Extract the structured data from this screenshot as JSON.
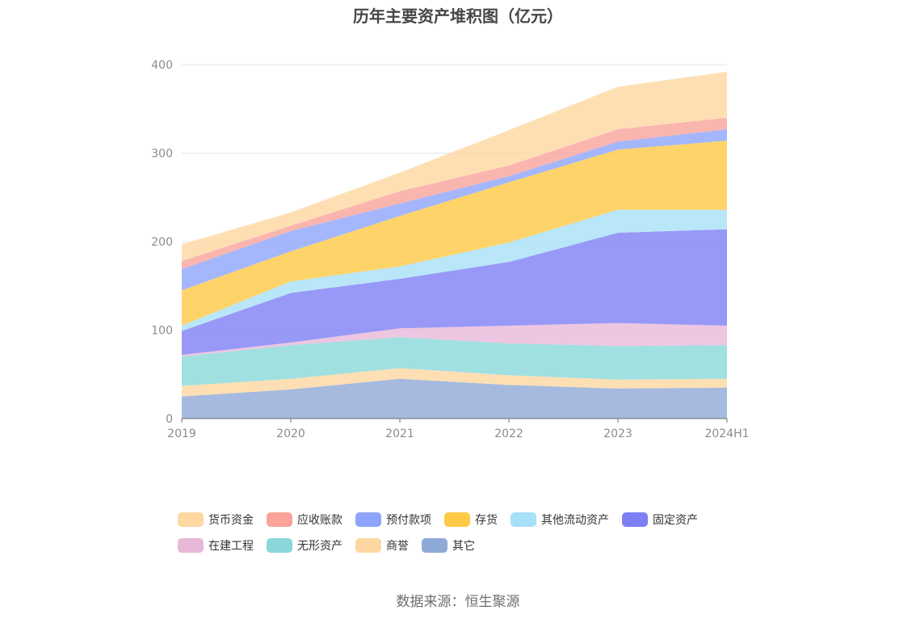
{
  "chart_data": {
    "type": "area",
    "title": "历年主要资产堆积图（亿元）",
    "categories": [
      "2019",
      "2020",
      "2021",
      "2022",
      "2023",
      "2024H1"
    ],
    "ylim": [
      0,
      400
    ],
    "yticks": [
      "0",
      "100",
      "200",
      "300",
      "400"
    ],
    "grid": true,
    "legend_position": "bottom",
    "series": [
      {
        "name": "其它",
        "color": "#8fa9d6",
        "values": [
          25,
          33,
          45,
          38,
          34,
          35
        ]
      },
      {
        "name": "商誉",
        "color": "#fed7a1",
        "values": [
          12,
          12,
          12,
          11,
          10,
          10
        ]
      },
      {
        "name": "无形资产",
        "color": "#8ad8da",
        "values": [
          33,
          38,
          35,
          36,
          38,
          38
        ]
      },
      {
        "name": "在建工程",
        "color": "#e8b8d9",
        "values": [
          2,
          3,
          10,
          20,
          26,
          22
        ]
      },
      {
        "name": "固定资产",
        "color": "#7e7ff5",
        "values": [
          27,
          56,
          56,
          72,
          102,
          109
        ]
      },
      {
        "name": "其他流动资产",
        "color": "#a8e0f8",
        "values": [
          6,
          13,
          14,
          22,
          26,
          22
        ]
      },
      {
        "name": "存货",
        "color": "#fec945",
        "values": [
          40,
          34,
          57,
          68,
          68,
          78
        ]
      },
      {
        "name": "预付款项",
        "color": "#8fa5fb",
        "values": [
          24,
          23,
          14,
          7,
          9,
          13
        ]
      },
      {
        "name": "应收账款",
        "color": "#f9a39b",
        "values": [
          9,
          6,
          14,
          12,
          14,
          13
        ]
      },
      {
        "name": "货币资金",
        "color": "#fed7a1",
        "values": [
          19,
          15,
          21,
          40,
          48,
          52
        ]
      }
    ]
  },
  "legend_rows": [
    [
      "货币资金",
      "应收账款",
      "预付款项",
      "存货",
      "其他流动资产",
      "固定资产"
    ],
    [
      "在建工程",
      "无形资产",
      "商誉",
      "其它"
    ]
  ],
  "source_text": "数据来源：恒生聚源"
}
